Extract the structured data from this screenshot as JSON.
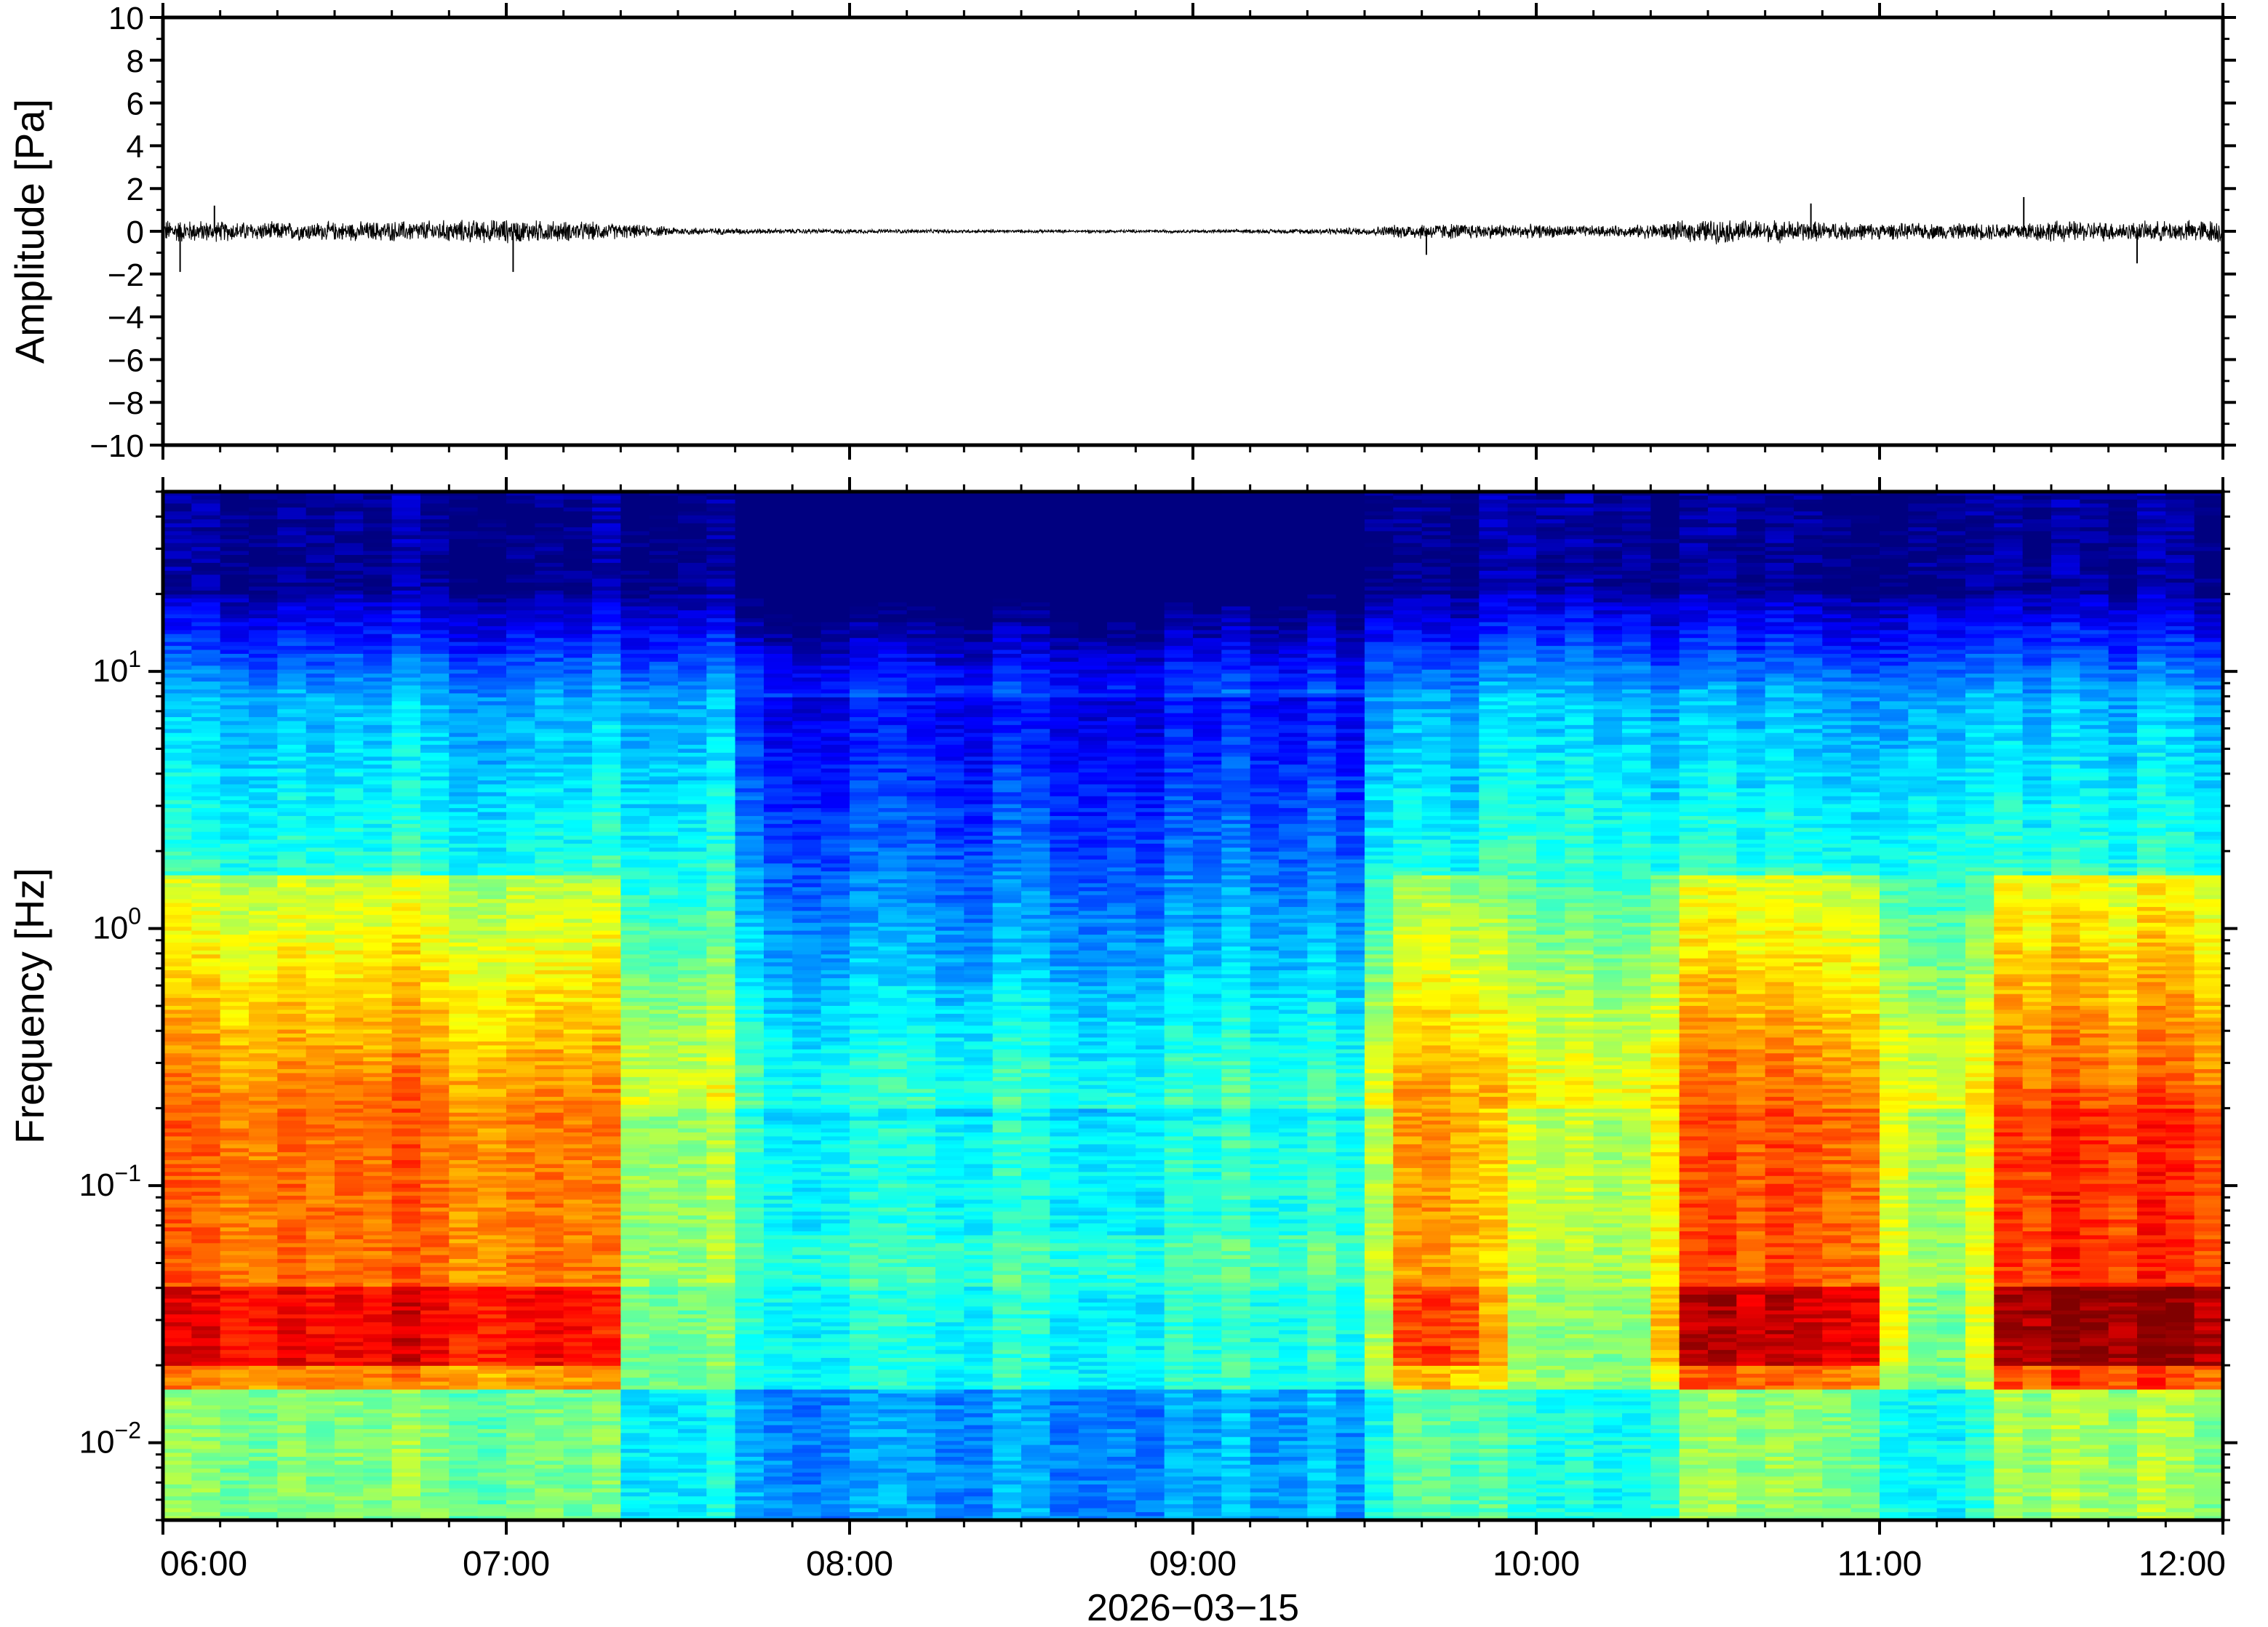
{
  "chart_data": [
    {
      "type": "line",
      "panel": "waveform",
      "ylabel": "Amplitude [Pa]",
      "ylim": [
        -10,
        10
      ],
      "yticks": [
        10,
        8,
        6,
        4,
        2,
        0,
        -2,
        -4,
        -6,
        -8,
        -10
      ],
      "ytick_labels": [
        "10",
        "8",
        "6",
        "4",
        "2",
        "0",
        "−2",
        "−4",
        "−6",
        "−8",
        "−10"
      ],
      "xlim_hours": [
        6,
        12
      ],
      "envelope": {
        "t": [
          6.0,
          6.25,
          6.5,
          6.75,
          7.0,
          7.25,
          7.5,
          7.75,
          8.0,
          8.5,
          9.0,
          9.25,
          9.5,
          9.65,
          9.75,
          10.0,
          10.25,
          10.5,
          10.75,
          11.0,
          11.25,
          11.5,
          11.75,
          12.0
        ],
        "half_amplitude": [
          0.45,
          0.35,
          0.35,
          0.4,
          0.45,
          0.35,
          0.15,
          0.1,
          0.08,
          0.06,
          0.06,
          0.08,
          0.15,
          0.3,
          0.3,
          0.25,
          0.2,
          0.45,
          0.4,
          0.3,
          0.3,
          0.4,
          0.35,
          0.45
        ]
      },
      "spikes": [
        {
          "t": 6.05,
          "v": -1.9
        },
        {
          "t": 6.15,
          "v": 1.2
        },
        {
          "t": 7.02,
          "v": -1.9
        },
        {
          "t": 9.68,
          "v": -1.1
        },
        {
          "t": 10.8,
          "v": 1.3
        },
        {
          "t": 11.42,
          "v": 1.6
        },
        {
          "t": 11.75,
          "v": -1.5
        }
      ]
    },
    {
      "type": "heatmap",
      "panel": "spectrogram",
      "ylabel": "Frequency [Hz]",
      "yscale": "log",
      "ylim": [
        0.005,
        50
      ],
      "yticks": [
        {
          "value": 10,
          "base": "10",
          "exp": "1"
        },
        {
          "value": 1,
          "base": "10",
          "exp": "0"
        },
        {
          "value": 0.1,
          "base": "10",
          "exp": "−1"
        },
        {
          "value": 0.01,
          "base": "10",
          "exp": "−2"
        }
      ],
      "colormap": "jet",
      "xlim_hours": [
        6,
        12
      ],
      "time_columns": 72,
      "quiet_intervals": [
        {
          "start": 7.7,
          "end": 9.5,
          "depth": 1.0
        },
        {
          "start": 7.85,
          "end": 7.95,
          "depth": 0.6
        },
        {
          "start": 9.0,
          "end": 9.05,
          "depth": 0.4
        }
      ],
      "energetic_intervals": [
        {
          "start": 6.0,
          "end": 7.3,
          "level": 0.85
        },
        {
          "start": 9.6,
          "end": 9.85,
          "level": 0.8
        },
        {
          "start": 10.4,
          "end": 11.0,
          "level": 0.9
        },
        {
          "start": 11.35,
          "end": 12.0,
          "level": 0.95
        }
      ]
    }
  ],
  "xaxis": {
    "ticks_hours": [
      6,
      7,
      8,
      9,
      10,
      11,
      12
    ],
    "tick_labels": [
      "06:00",
      "07:00",
      "08:00",
      "09:00",
      "10:00",
      "11:00",
      "12:00"
    ],
    "date_label": "2026−03−15"
  },
  "colors": {
    "frame": "#000000",
    "trace": "#000000",
    "background": "#ffffff"
  }
}
